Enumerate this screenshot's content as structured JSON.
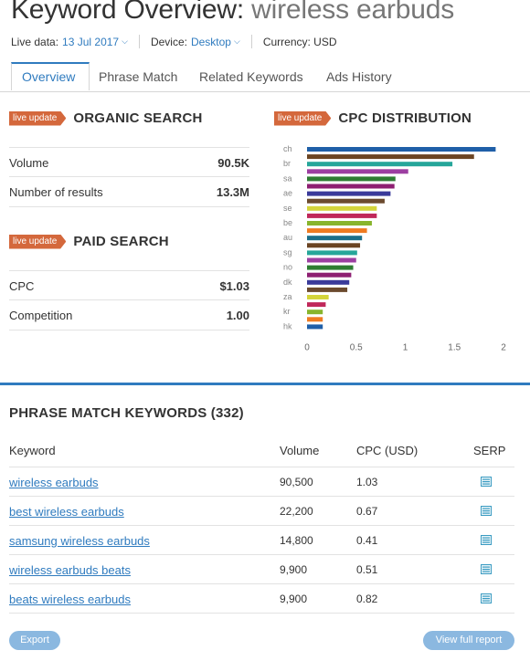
{
  "header": {
    "title_prefix": "Keyword Overview:",
    "title_keyword": "wireless earbuds",
    "live_data_label": "Live data:",
    "live_data_value": "13 Jul 2017",
    "device_label": "Device:",
    "device_value": "Desktop",
    "currency_text": "Currency: USD"
  },
  "tabs": [
    {
      "label": "Overview",
      "active": true
    },
    {
      "label": "Phrase Match"
    },
    {
      "label": "Related Keywords"
    },
    {
      "label": "Ads History"
    }
  ],
  "badge_text": "live update",
  "organic": {
    "title": "ORGANIC SEARCH",
    "metrics": [
      {
        "label": "Volume",
        "value": "90.5K"
      },
      {
        "label": "Number of results",
        "value": "13.3M"
      }
    ]
  },
  "paid": {
    "title": "PAID SEARCH",
    "metrics": [
      {
        "label": "CPC",
        "value": "$1.03"
      },
      {
        "label": "Competition",
        "value": "1.00"
      }
    ]
  },
  "cpc": {
    "title": "CPC DISTRIBUTION"
  },
  "chart_data": {
    "type": "bar",
    "orientation": "horizontal",
    "title": "CPC DISTRIBUTION",
    "categories": [
      "ch",
      "",
      "br",
      "",
      "sa",
      "",
      "ae",
      "",
      "se",
      "",
      "be",
      "",
      "au",
      "",
      "sg",
      "",
      "no",
      "",
      "dk",
      "",
      "za",
      "",
      "kr",
      "",
      "hk"
    ],
    "values": [
      1.92,
      1.7,
      1.48,
      1.03,
      0.9,
      0.89,
      0.85,
      0.79,
      0.71,
      0.71,
      0.66,
      0.61,
      0.56,
      0.54,
      0.51,
      0.5,
      0.47,
      0.45,
      0.43,
      0.41,
      0.22,
      0.19,
      0.16,
      0.16,
      0.16
    ],
    "colors": [
      "#1f5fa8",
      "#6b4423",
      "#26a69a",
      "#9c3fa1",
      "#2e7d32",
      "#8e1f72",
      "#3a3a9a",
      "#6b4a2e",
      "#d4d43a",
      "#c0285a",
      "#88b52d",
      "#ef7b22",
      "#1b6f8a",
      "#6b4423",
      "#26a69a",
      "#9c3fa1",
      "#2e7d32",
      "#8e1f72",
      "#3a3a9a",
      "#6b4a2e",
      "#d4d43a",
      "#c0285a",
      "#88b52d",
      "#ef7b22",
      "#1f5fa8"
    ],
    "xlim": [
      0,
      2
    ],
    "xticks": [
      "0",
      "0.5",
      "1",
      "1.5",
      "2"
    ],
    "grid": false
  },
  "phrase_match": {
    "title": "PHRASE MATCH KEYWORDS (332)",
    "headers": {
      "keyword": "Keyword",
      "volume": "Volume",
      "cpc": "CPC (USD)",
      "serp": "SERP"
    },
    "rows": [
      {
        "keyword": "wireless earbuds",
        "volume": "90,500",
        "cpc": "1.03"
      },
      {
        "keyword": "best wireless earbuds",
        "volume": "22,200",
        "cpc": "0.67"
      },
      {
        "keyword": "samsung wireless earbuds",
        "volume": "14,800",
        "cpc": "0.41"
      },
      {
        "keyword": "wireless earbuds beats",
        "volume": "9,900",
        "cpc": "0.51"
      },
      {
        "keyword": "beats wireless earbuds",
        "volume": "9,900",
        "cpc": "0.82"
      }
    ]
  },
  "buttons": {
    "export": "Export",
    "full_report": "View full report"
  },
  "colors": {
    "accent": "#2f7bbf",
    "badge": "#d4683c",
    "button": "#8bb8e0"
  },
  "icons": {
    "serp": "serp-list-icon",
    "dropdown": "chevron-down-icon"
  }
}
